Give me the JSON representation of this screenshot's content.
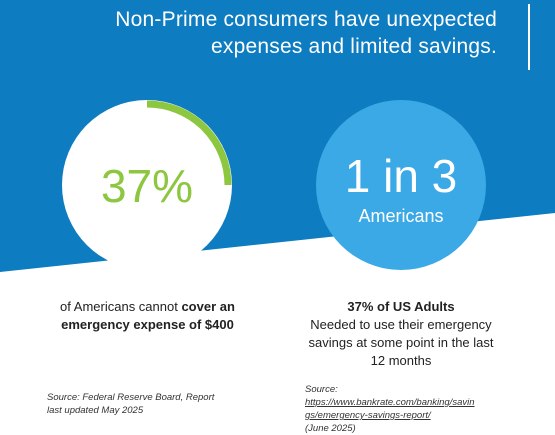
{
  "header": {
    "headline_line1": "Non-Prime consumers have unexpected",
    "headline_line2": "expenses and limited savings."
  },
  "stat_left": {
    "value": "37%",
    "ring_fraction": 0.25,
    "desc_prefix": "of Americans cannot ",
    "desc_bold1": "cover an",
    "desc_bold2": "emergency expense of $400",
    "source_line1": "Source: Federal Reserve Board, Report",
    "source_line2": "last updated May 2025"
  },
  "stat_right": {
    "value": "1 in 3",
    "caption": "Americans",
    "desc_bold": "37% of US Adults",
    "desc_line1": "Needed to use their emergency",
    "desc_line2": "savings at some point in the last",
    "desc_line3": "12 months",
    "source_label": "Source:",
    "source_link_line1": "https://www.bankrate.com/banking/savin",
    "source_link_line2": "gs/emergency-savings-report/",
    "source_date": "(June 2025)"
  },
  "colors": {
    "background_blue": "#0d7cc1",
    "circle_blue": "#3aa9e6",
    "accent_green": "#8dc63f",
    "text_dark": "#222222"
  }
}
